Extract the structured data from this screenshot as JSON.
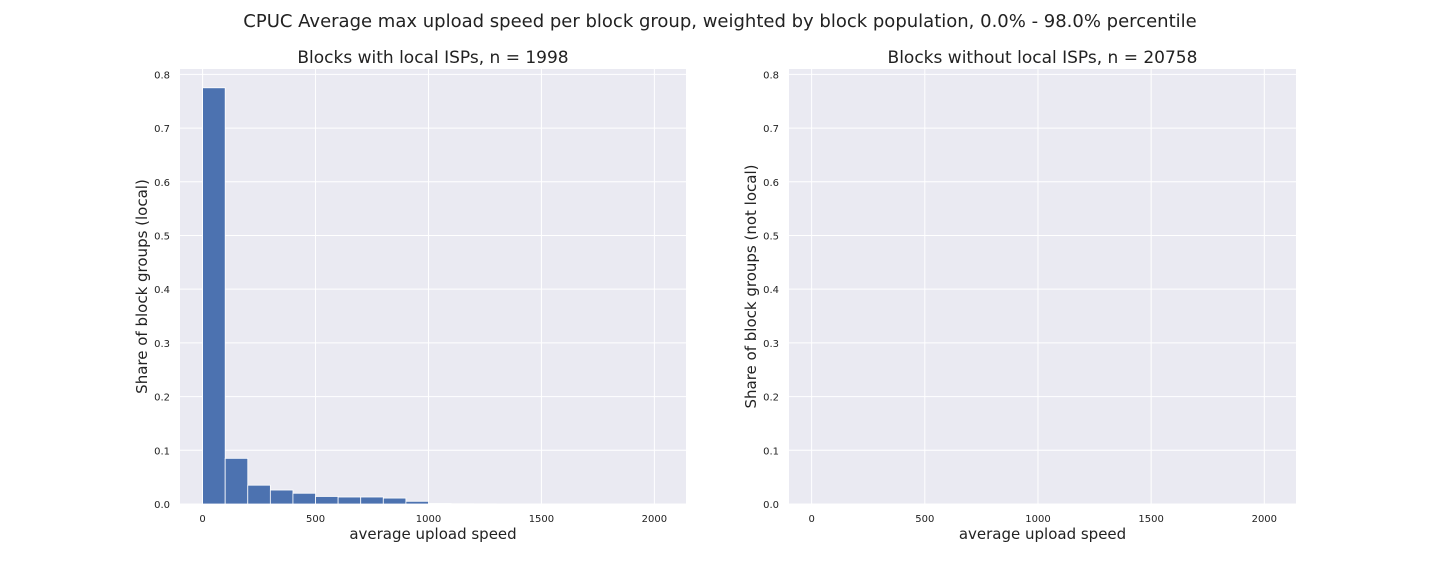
{
  "figure": {
    "suptitle": "CPUC Average max upload speed per block group, weighted by block population, 0.0% - 98.0% percentile"
  },
  "chart_data": [
    {
      "type": "bar",
      "title": "Blocks with local ISPs, n = 1998",
      "xlabel": "average upload speed",
      "ylabel": "Share of block groups (local)",
      "xlim": [
        -100,
        2140
      ],
      "ylim": [
        0,
        0.81
      ],
      "xticks": [
        0,
        500,
        1000,
        1500,
        2000
      ],
      "yticks": [
        0.0,
        0.1,
        0.2,
        0.3,
        0.4,
        0.5,
        0.6,
        0.7,
        0.8
      ],
      "grid": true,
      "bin_width": 100,
      "bin_edges": [
        0,
        100,
        200,
        300,
        400,
        500,
        600,
        700,
        800,
        900,
        1000,
        1100,
        1200,
        1300,
        1400,
        1500,
        1600,
        1700,
        1800,
        1900,
        2000,
        2100
      ],
      "values": [
        0.775,
        0.085,
        0.035,
        0.026,
        0.02,
        0.014,
        0.013,
        0.013,
        0.011,
        0.005,
        0.001,
        0.0005,
        0.0003,
        0.0002,
        0.0002,
        0.0001,
        0.0001,
        0.0001,
        0.0001,
        0.0001,
        0.0001
      ],
      "color": "#4c72b0"
    },
    {
      "type": "bar",
      "title": "Blocks without local ISPs, n = 20758",
      "xlabel": "average upload speed",
      "ylabel": "Share of block groups (not local)",
      "xlim": [
        -100,
        2140
      ],
      "ylim": [
        0,
        0.81
      ],
      "xticks": [
        0,
        500,
        1000,
        1500,
        2000
      ],
      "yticks": [
        0.0,
        0.1,
        0.2,
        0.3,
        0.4,
        0.5,
        0.6,
        0.7,
        0.8
      ],
      "grid": true,
      "bin_width": 100,
      "bin_edges": [],
      "values": [],
      "color": "#4c72b0"
    }
  ]
}
